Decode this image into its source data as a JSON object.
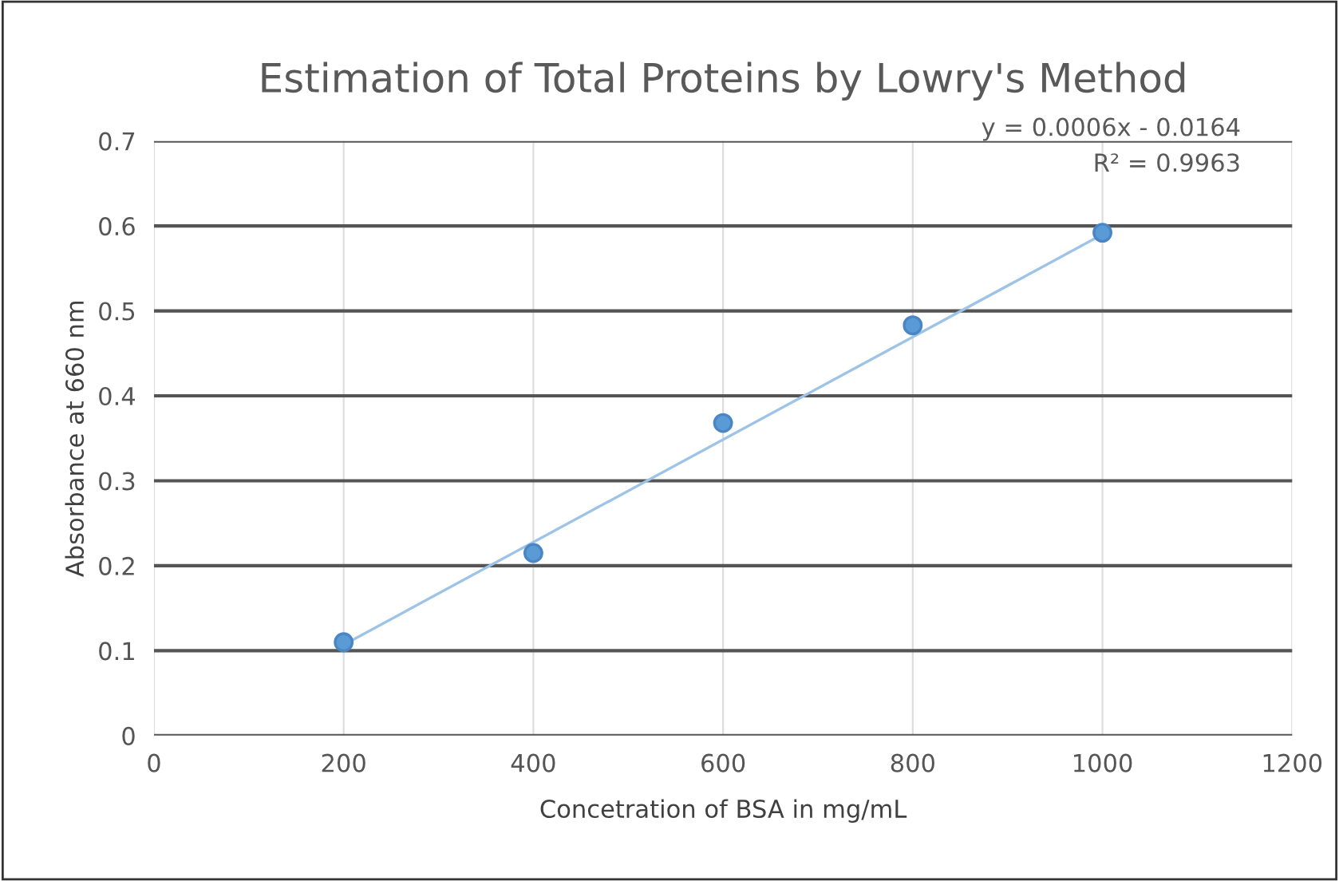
{
  "chart_data": {
    "type": "scatter",
    "title": "Estimation of Total Proteins by Lowry's Method",
    "xlabel": "Concetration of BSA in mg/mL",
    "ylabel": "Absorbance at 660 nm",
    "series": [
      {
        "color": "#5b9bd5",
        "x": [
          200,
          400,
          600,
          800,
          1000
        ],
        "values": [
          0.11,
          0.215,
          0.368,
          0.483,
          0.592
        ],
        "marker": "circle"
      },
      {
        "type": "line",
        "color": "#9dc3e6",
        "x": [
          200,
          1000
        ],
        "values": [
          0.107,
          0.59
        ],
        "marker": "none"
      }
    ],
    "annotations": [
      "y = 0.0006x - 0.0164",
      "R² = 0.9963"
    ],
    "xlim": [
      0,
      1200
    ],
    "xticks": [
      0,
      200,
      400,
      600,
      800,
      1000,
      1200
    ],
    "ylim": [
      0,
      0.7
    ],
    "yticks": [
      0,
      0.1,
      0.2,
      0.3,
      0.4,
      0.5,
      0.6,
      0.7
    ],
    "grid": true,
    "legend": false
  }
}
